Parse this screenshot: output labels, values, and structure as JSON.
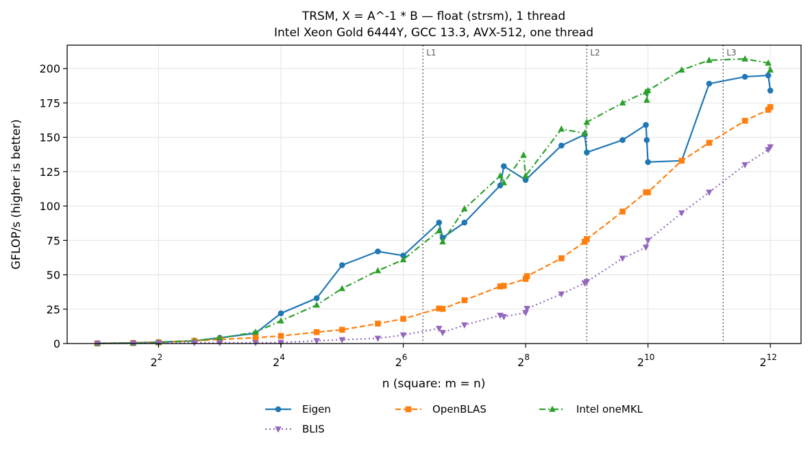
{
  "chart_data": {
    "type": "line",
    "title": "TRSM, X = A^-1 * B — float (strsm), 1 thread",
    "subtitle": "Intel Xeon Gold 6444Y, GCC 13.3, AVX-512, one thread",
    "xlabel": "n (square: m = n)",
    "ylabel": "GFLOP/s (higher is better)",
    "x_scale": "log2",
    "xlim": [
      1.42,
      5800
    ],
    "ylim": [
      0,
      217
    ],
    "x_ticks": [
      {
        "value": 4,
        "base": "2",
        "exp": "2"
      },
      {
        "value": 16,
        "base": "2",
        "exp": "4"
      },
      {
        "value": 64,
        "base": "2",
        "exp": "6"
      },
      {
        "value": 256,
        "base": "2",
        "exp": "8"
      },
      {
        "value": 1024,
        "base": "2",
        "exp": "10"
      },
      {
        "value": 4096,
        "base": "2",
        "exp": "12"
      }
    ],
    "y_ticks": [
      {
        "value": 0,
        "label": "0"
      },
      {
        "value": 25,
        "label": "25"
      },
      {
        "value": 50,
        "label": "50"
      },
      {
        "value": 75,
        "label": "75"
      },
      {
        "value": 100,
        "label": "100"
      },
      {
        "value": 125,
        "label": "125"
      },
      {
        "value": 150,
        "label": "150"
      },
      {
        "value": 175,
        "label": "175"
      },
      {
        "value": 200,
        "label": "200"
      }
    ],
    "grid": true,
    "legend_position": "bottom-center",
    "cache_lines": [
      {
        "label": "L1",
        "x": 80
      },
      {
        "label": "L2",
        "x": 512
      },
      {
        "label": "L3",
        "x": 2400
      }
    ],
    "series": [
      {
        "name": "Eigen",
        "color": "#1f77b4",
        "marker": "circle",
        "dash": "solid",
        "points": [
          [
            2,
            0.2
          ],
          [
            3,
            0.5
          ],
          [
            4,
            1.1
          ],
          [
            6,
            2.0
          ],
          [
            8,
            4.2
          ],
          [
            12,
            7.5
          ],
          [
            16,
            22
          ],
          [
            24,
            33
          ],
          [
            32,
            57
          ],
          [
            48,
            67
          ],
          [
            64,
            64
          ],
          [
            96,
            88
          ],
          [
            100,
            77
          ],
          [
            128,
            88
          ],
          [
            192,
            115
          ],
          [
            200,
            129
          ],
          [
            256,
            119
          ],
          [
            384,
            144
          ],
          [
            500,
            152
          ],
          [
            512,
            139
          ],
          [
            768,
            148
          ],
          [
            1000,
            159
          ],
          [
            1010,
            148
          ],
          [
            1024,
            132
          ],
          [
            1500,
            133
          ],
          [
            2048,
            189
          ],
          [
            3072,
            194
          ],
          [
            4000,
            195
          ],
          [
            4096,
            184
          ]
        ]
      },
      {
        "name": "OpenBLAS",
        "color": "#ff7f0e",
        "marker": "square",
        "dash": "dashed",
        "points": [
          [
            2,
            0.1
          ],
          [
            3,
            0.4
          ],
          [
            4,
            0.9
          ],
          [
            6,
            2.0
          ],
          [
            8,
            3.0
          ],
          [
            12,
            4.3
          ],
          [
            16,
            5.5
          ],
          [
            24,
            8.3
          ],
          [
            32,
            10
          ],
          [
            48,
            14.5
          ],
          [
            64,
            18
          ],
          [
            96,
            25.5
          ],
          [
            100,
            25.2
          ],
          [
            128,
            31.5
          ],
          [
            192,
            41.5
          ],
          [
            200,
            42
          ],
          [
            256,
            47
          ],
          [
            260,
            49
          ],
          [
            384,
            62
          ],
          [
            500,
            74
          ],
          [
            512,
            76
          ],
          [
            768,
            96
          ],
          [
            1000,
            110
          ],
          [
            1024,
            110
          ],
          [
            1500,
            133
          ],
          [
            2048,
            146
          ],
          [
            3072,
            162
          ],
          [
            4000,
            170
          ],
          [
            4096,
            172
          ]
        ]
      },
      {
        "name": "Intel oneMKL",
        "color": "#2ca02c",
        "marker": "triangle-up",
        "dash": "dashdot",
        "points": [
          [
            2,
            0.1
          ],
          [
            3,
            0.4
          ],
          [
            4,
            0.9
          ],
          [
            6,
            2.0
          ],
          [
            8,
            4.0
          ],
          [
            12,
            8.3
          ],
          [
            16,
            16.5
          ],
          [
            24,
            28
          ],
          [
            32,
            40
          ],
          [
            48,
            53
          ],
          [
            64,
            61
          ],
          [
            96,
            82
          ],
          [
            100,
            74
          ],
          [
            128,
            98
          ],
          [
            192,
            122
          ],
          [
            200,
            117
          ],
          [
            250,
            137
          ],
          [
            256,
            122
          ],
          [
            384,
            156
          ],
          [
            500,
            153
          ],
          [
            512,
            161
          ],
          [
            768,
            175
          ],
          [
            1000,
            183
          ],
          [
            1010,
            177
          ],
          [
            1024,
            184
          ],
          [
            1500,
            199
          ],
          [
            2048,
            206
          ],
          [
            3072,
            207
          ],
          [
            4000,
            204
          ],
          [
            4096,
            199
          ]
        ]
      },
      {
        "name": "BLIS",
        "color": "#9467bd",
        "marker": "triangle-down",
        "dash": "dotted",
        "points": [
          [
            2,
            0.1
          ],
          [
            3,
            0.2
          ],
          [
            4,
            0.4
          ],
          [
            6,
            0.6
          ],
          [
            8,
            0.6
          ],
          [
            12,
            0.6
          ],
          [
            16,
            0.8
          ],
          [
            24,
            2.0
          ],
          [
            32,
            2.8
          ],
          [
            48,
            3.8
          ],
          [
            64,
            6.2
          ],
          [
            96,
            11
          ],
          [
            100,
            8.0
          ],
          [
            128,
            13.5
          ],
          [
            192,
            20.5
          ],
          [
            200,
            19.5
          ],
          [
            256,
            22.5
          ],
          [
            260,
            25.5
          ],
          [
            384,
            36
          ],
          [
            500,
            44
          ],
          [
            512,
            45
          ],
          [
            768,
            62
          ],
          [
            1000,
            70
          ],
          [
            1024,
            75
          ],
          [
            1500,
            95
          ],
          [
            2048,
            110
          ],
          [
            3072,
            130
          ],
          [
            4000,
            141
          ],
          [
            4096,
            143
          ]
        ]
      }
    ]
  }
}
